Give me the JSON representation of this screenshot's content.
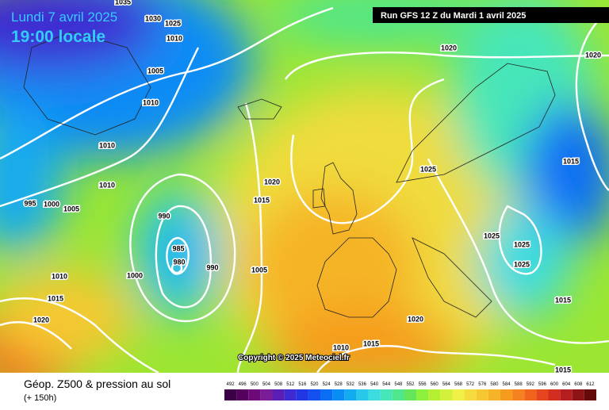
{
  "header": {
    "date": "Lundi 7 avril 2025",
    "time": "19:00 locale",
    "run": "Run GFS 12 Z du Mardi 1 avril 2025"
  },
  "copyright": "Copyright © 2025 Meteociel.fr",
  "footer": {
    "title": "Géop. Z500 & pression au sol",
    "lead": "(+ 150h)"
  },
  "isobar_labels": [
    1035,
    1030,
    1025,
    1010,
    1005,
    1010,
    1010,
    1010,
    995,
    1000,
    1005,
    990,
    985,
    980,
    990,
    1000,
    1005,
    1010,
    1015,
    1020,
    1020,
    1015,
    1020,
    1020,
    1025,
    1025,
    1025,
    1025,
    1015,
    1015,
    1020,
    1010,
    1015,
    1015
  ],
  "legend": {
    "levels": [
      492,
      496,
      500,
      504,
      508,
      512,
      516,
      520,
      524,
      528,
      532,
      536,
      540,
      544,
      548,
      552,
      556,
      560,
      564,
      568,
      572,
      576,
      580,
      584,
      588,
      592,
      596,
      600,
      604,
      608,
      612
    ],
    "colors": [
      "#3c0046",
      "#55005f",
      "#6e0a78",
      "#7a1c96",
      "#5a1eb4",
      "#3c2ad2",
      "#2236e6",
      "#1450f0",
      "#0a6ef5",
      "#0a8cf5",
      "#14aaf0",
      "#28c8eb",
      "#3cdce1",
      "#46e6b9",
      "#50e68c",
      "#64e65a",
      "#8cf03c",
      "#b4f032",
      "#d2f03c",
      "#f0f046",
      "#f5dc3c",
      "#f5c832",
      "#f5b428",
      "#f59b1e",
      "#f5821e",
      "#f0641e",
      "#e6461e",
      "#d22d1e",
      "#b41e1e",
      "#8c1414",
      "#640a0a"
    ]
  }
}
